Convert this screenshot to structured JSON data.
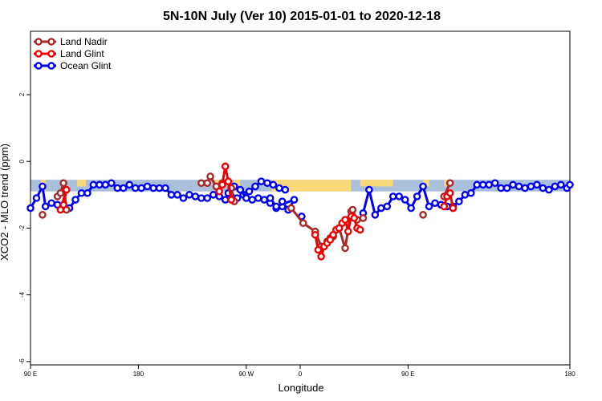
{
  "chart_data": {
    "type": "line",
    "title": "5N-10N July (Ver 10)   2015-01-01 to 2020-12-18",
    "xlabel": "Longitude",
    "ylabel": "XCO2 - MLO trend (ppm)",
    "xlim": [
      -90,
      90
    ],
    "ylim": [
      -6.1,
      3.9
    ],
    "x_ticks": [
      {
        "value": -90,
        "label": "90 E"
      },
      {
        "value": -54,
        "label": "180"
      },
      {
        "value": -18,
        "label": "90 W"
      },
      {
        "value": 0,
        "label": "0"
      },
      {
        "value": 36,
        "label": "90 E"
      },
      {
        "value": 90,
        "label": "180"
      }
    ],
    "y_ticks": [
      {
        "value": 2,
        "label": "2"
      },
      {
        "value": 0,
        "label": "0"
      },
      {
        "value": -2,
        "label": "-2"
      },
      {
        "value": -4,
        "label": "-4"
      },
      {
        "value": -6,
        "label": "-6"
      }
    ],
    "background_band": {
      "y_range": [
        -0.9,
        -0.55
      ],
      "ocean_color": "#A9BFDA",
      "land_color": "#F9D87A",
      "land_segments": [
        {
          "x": [
            -86.5,
            -85
          ],
          "bottom": -0.9
        },
        {
          "x": [
            -74.5,
            -71.5
          ],
          "bottom": -0.75
        },
        {
          "x": [
            -29,
            -26.5
          ],
          "bottom": -0.75
        },
        {
          "x": [
            -22,
            -20
          ],
          "bottom": -0.75
        },
        {
          "x": [
            -9.5,
            17
          ],
          "bottom": -0.9
        },
        {
          "x": [
            20,
            31
          ],
          "bottom": -0.75
        },
        {
          "x": [
            41,
            43
          ],
          "bottom": -0.75
        },
        {
          "x": [
            48,
            50
          ],
          "bottom": -0.75
        }
      ]
    },
    "legend": {
      "position": "top-left",
      "entries": [
        "Land Nadir",
        "Land Glint",
        "Ocean Glint"
      ]
    },
    "series": [
      {
        "name": "Ocean Glint",
        "color": "#0000EE",
        "segments": [
          {
            "x": [
              -90,
              -88,
              -86,
              -85,
              -83,
              -81,
              -79,
              -77,
              -75,
              -73,
              -71,
              -69,
              -67,
              -65,
              -63,
              -61,
              -59,
              -57,
              -55,
              -53,
              -51,
              -49,
              -47,
              -45,
              -43,
              -41,
              -39,
              -37,
              -35,
              -33,
              -31,
              -29,
              -27,
              -25,
              -23,
              -21,
              -19,
              -17,
              -15,
              -13,
              -11,
              -9,
              -7,
              -5
            ],
            "y": [
              -1.4,
              -1.1,
              -0.75,
              -1.35,
              -1.25,
              -1.3,
              -1.3,
              -1.4,
              -1.15,
              -0.95,
              -0.95,
              -0.7,
              -0.7,
              -0.7,
              -0.65,
              -0.8,
              -0.8,
              -0.7,
              -0.8,
              -0.8,
              -0.75,
              -0.8,
              -0.8,
              -0.8,
              -1.0,
              -1.0,
              -1.1,
              -1.0,
              -1.05,
              -1.1,
              -1.1,
              -1.0,
              -1.05,
              -1.15,
              -1.05,
              -1.1,
              -1.0,
              -0.9,
              -0.75,
              -0.6,
              -0.65,
              -0.7,
              -0.8,
              -0.85
            ]
          },
          {
            "x": [
              -24,
              -22,
              -20,
              -18,
              -16,
              -14,
              -12,
              -10,
              -8,
              -6,
              -4
            ],
            "y": [
              -0.95,
              -0.75,
              -0.85,
              -1.1,
              -1.15,
              -1.1,
              -1.15,
              -1.25,
              -1.4,
              -1.35,
              -1.45
            ]
          },
          {
            "x": [
              -6,
              -4,
              -2,
              -8,
              -10
            ],
            "y": [
              -1.2,
              -1.45,
              -1.15,
              -1.35,
              -1.1
            ]
          },
          {
            "x": [
              0.5
            ],
            "y": [
              -1.65
            ]
          },
          {
            "x": [
              21,
              23,
              25,
              27,
              29,
              31,
              33,
              35,
              37,
              39,
              41,
              43,
              45,
              47,
              49,
              51,
              53,
              55,
              57,
              59,
              61,
              63,
              65,
              67,
              69,
              71,
              73,
              75,
              77,
              79,
              81,
              83,
              85,
              87,
              89,
              90
            ],
            "y": [
              -1.55,
              -0.85,
              -1.6,
              -1.4,
              -1.35,
              -1.05,
              -1.05,
              -1.15,
              -1.4,
              -1.05,
              -0.75,
              -1.35,
              -1.25,
              -1.3,
              -1.35,
              -1.35,
              -1.2,
              -1.0,
              -0.95,
              -0.7,
              -0.7,
              -0.7,
              -0.65,
              -0.8,
              -0.8,
              -0.7,
              -0.75,
              -0.8,
              -0.75,
              -0.7,
              -0.8,
              -0.85,
              -0.75,
              -0.7,
              -0.8,
              -0.7
            ]
          }
        ]
      },
      {
        "name": "Land Nadir",
        "color": "#A52A2A",
        "segments": [
          {
            "x": [
              -86
            ],
            "y": [
              -1.6
            ]
          },
          {
            "x": [
              -81,
              -80,
              -79,
              -78
            ],
            "y": [
              -1.05,
              -0.95,
              -0.65,
              -1.45
            ]
          },
          {
            "x": [
              -33
            ],
            "y": [
              -0.65
            ]
          },
          {
            "x": [
              -31,
              -30,
              -28,
              -26
            ],
            "y": [
              -0.65,
              -0.45,
              -0.75,
              -0.65
            ]
          },
          {
            "x": [
              -23,
              -22
            ],
            "y": [
              -0.8,
              -1.2
            ]
          },
          {
            "x": [
              -3,
              1,
              5,
              7,
              9,
              10,
              11,
              13,
              15,
              17,
              17.5,
              19,
              21
            ],
            "y": [
              -1.4,
              -1.85,
              -2.1,
              -2.55,
              -2.4,
              -2.3,
              -2.25,
              -2.0,
              -2.6,
              -1.5,
              -1.45,
              -1.75,
              -1.7
            ]
          },
          {
            "x": [
              41
            ],
            "y": [
              -1.6
            ]
          },
          {
            "x": [
              48,
              50
            ],
            "y": [
              -1.05,
              -0.65
            ]
          },
          {
            "x": [
              51
            ],
            "y": [
              -1.4
            ]
          }
        ]
      },
      {
        "name": "Land Glint",
        "color": "#EE0000",
        "segments": [
          {
            "x": [
              -80,
              -78,
              -79
            ],
            "y": [
              -1.45,
              -0.85,
              -1.3
            ]
          },
          {
            "x": [
              -27,
              -26,
              -25,
              -24,
              -23
            ],
            "y": [
              -0.9,
              -0.7,
              -0.15,
              -0.6,
              -1.15
            ]
          },
          {
            "x": [
              5,
              6,
              7,
              8,
              9,
              10,
              11,
              12,
              13,
              14,
              15,
              16,
              17,
              18,
              19,
              20
            ],
            "y": [
              -2.2,
              -2.65,
              -2.85,
              -2.55,
              -2.45,
              -2.35,
              -2.2,
              -2.05,
              -2.0,
              -1.85,
              -1.75,
              -2.1,
              -1.65,
              -1.7,
              -2.0,
              -2.05
            ]
          },
          {
            "x": [
              48,
              49,
              50,
              51
            ],
            "y": [
              -1.35,
              -1.05,
              -0.95,
              -1.4
            ]
          }
        ]
      }
    ]
  }
}
